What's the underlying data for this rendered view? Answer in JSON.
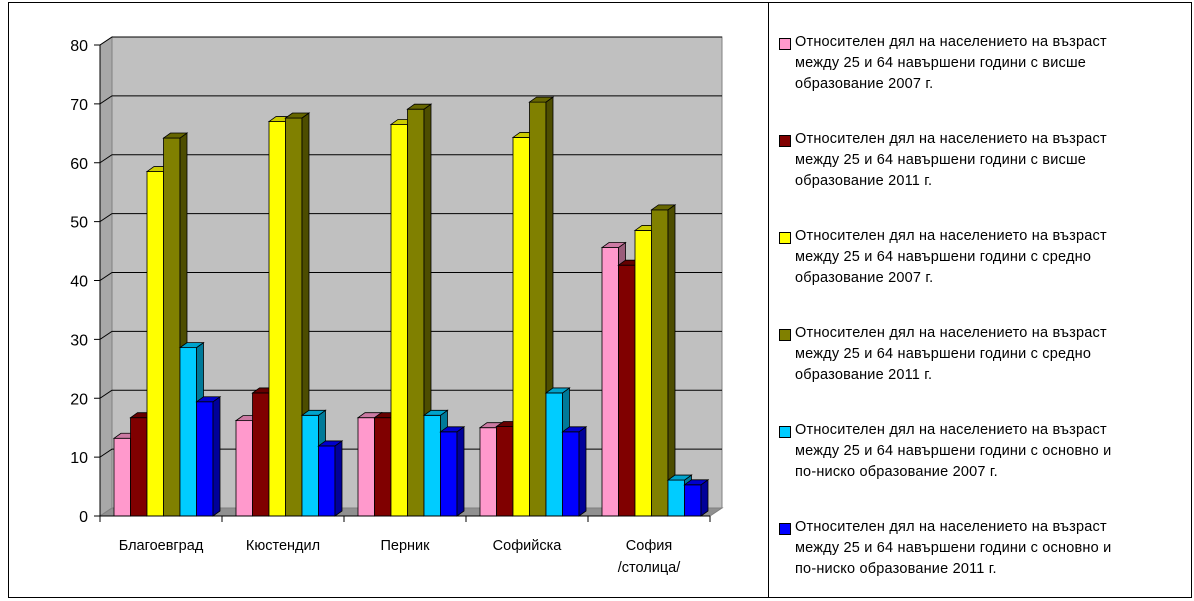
{
  "chart_data": {
    "type": "bar",
    "variant": "3d-clustered-column",
    "categories": [
      "Благоевград",
      "Кюстендил",
      "Перник",
      "Софийска",
      "София\n/столица/"
    ],
    "series": [
      {
        "name": "Относителен дял на населението на възраст\nмежду 25 и 64 навършени години с  висше\nобразование  2007 г.",
        "color": "#FF99CC",
        "values": [
          13.2,
          16.2,
          16.7,
          15.0,
          45.6
        ]
      },
      {
        "name": "Относителен дял на населението на възраст\nмежду 25 и 64 навършени години с  висше\nобразование  2011 г.",
        "color": "#800000",
        "values": [
          16.7,
          20.9,
          16.7,
          15.2,
          42.6
        ]
      },
      {
        "name": "Относителен дял на населението на възраст\nмежду 25 и 64 навършени години с  средно\nобразование  2007 г.",
        "color": "#FFFF00",
        "values": [
          58.5,
          67.0,
          66.5,
          64.3,
          48.5
        ]
      },
      {
        "name": "Относителен дял на населението на възраст\nмежду 25 и 64 навършени години с  средно\nобразование  2011 г.",
        "color": "#808000",
        "values": [
          64.2,
          67.6,
          69.1,
          70.3,
          52.0
        ]
      },
      {
        "name": "Относителен дял на населението на възраст\nмежду 25 и 64 навършени години с  основно и\nпо-ниско образование  2007 г.",
        "color": "#00CCFF",
        "values": [
          28.6,
          17.1,
          17.1,
          20.9,
          6.1
        ]
      },
      {
        "name": "Относителен дял на населението на възраст\nмежду 25 и 64 навършени години с  основно и\nпо-ниско образование  2011 г.",
        "color": "#0000FF",
        "values": [
          19.4,
          11.9,
          14.3,
          14.3,
          5.3
        ]
      }
    ],
    "y_ticks": [
      "0",
      "10",
      "20",
      "30",
      "40",
      "50",
      "60",
      "70",
      "80"
    ],
    "ylim": [
      0,
      80
    ],
    "grid": true,
    "wall_color": "#C0C0C0",
    "legend_position": "right"
  }
}
